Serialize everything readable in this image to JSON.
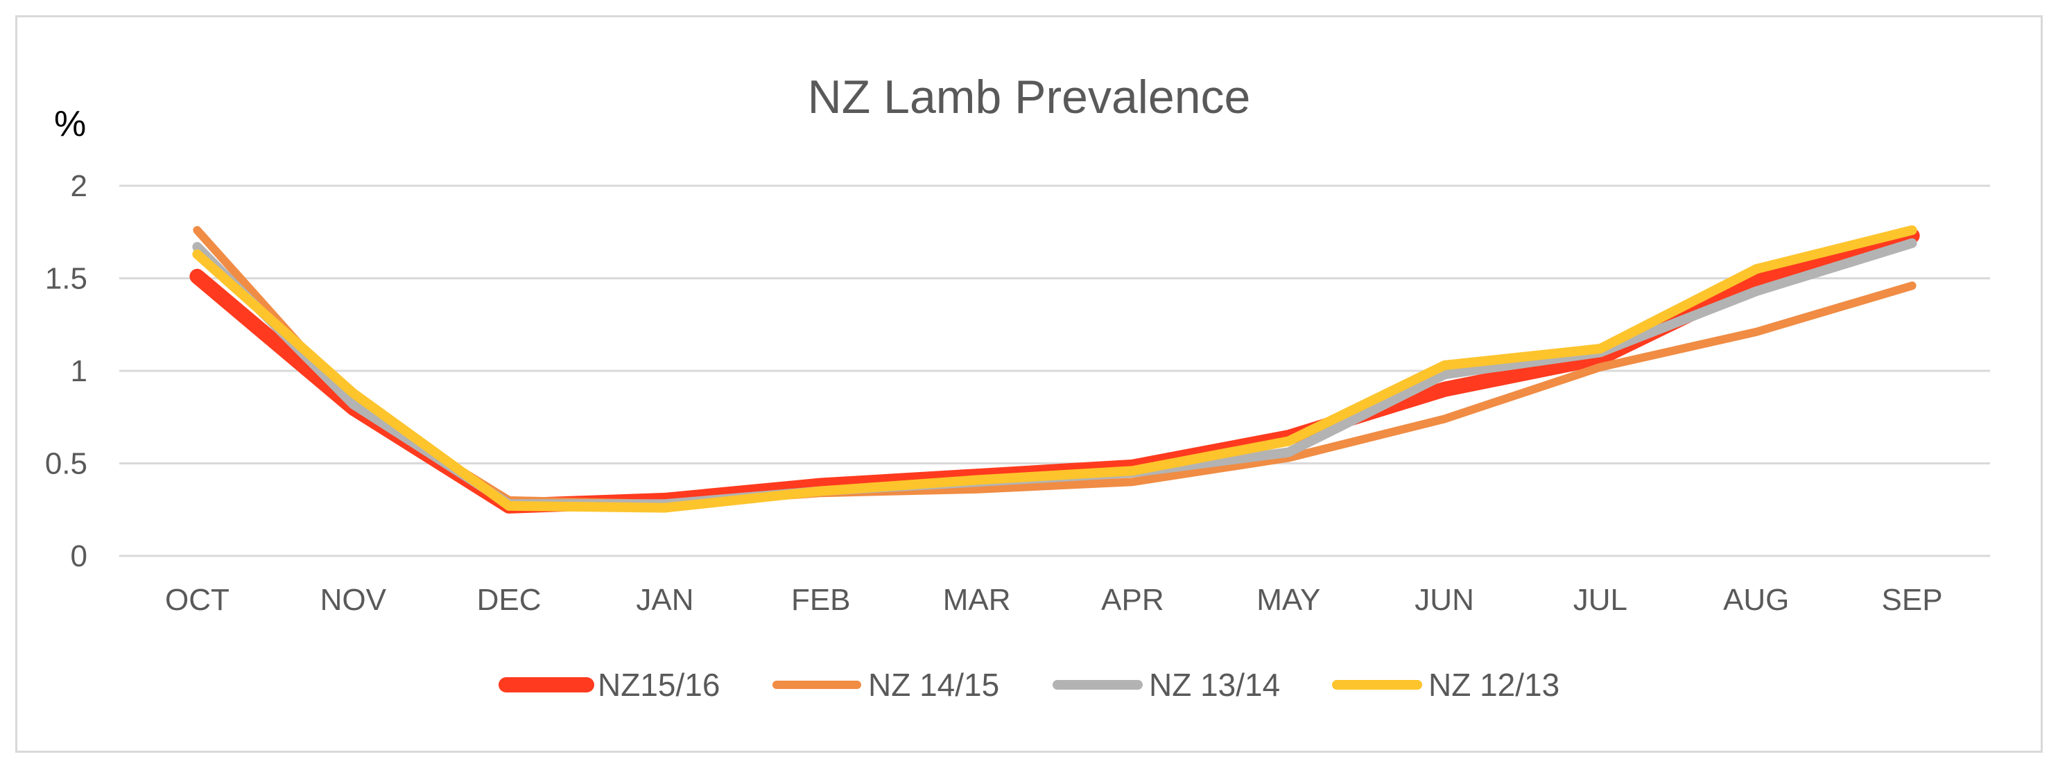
{
  "chart_data": {
    "type": "line",
    "title": "NZ Lamb Prevalence",
    "ylabel": "%",
    "xlabel": "",
    "categories": [
      "OCT",
      "NOV",
      "DEC",
      "JAN",
      "FEB",
      "MAR",
      "APR",
      "MAY",
      "JUN",
      "JUL",
      "AUG",
      "SEP"
    ],
    "ylim": [
      0,
      2
    ],
    "yticks": [
      "0",
      "0.5",
      "1",
      "1.5",
      "2"
    ],
    "grid": true,
    "legend_position": "bottom",
    "series": [
      {
        "name": "NZ15/16",
        "color": "#ff3a1e",
        "values": [
          1.51,
          0.8,
          0.27,
          0.3,
          0.38,
          0.43,
          0.48,
          0.64,
          0.9,
          1.07,
          1.48,
          1.73
        ]
      },
      {
        "name": "NZ 14/15",
        "color": "#f08c44",
        "values": [
          1.76,
          0.82,
          0.3,
          0.28,
          0.34,
          0.36,
          0.4,
          0.53,
          0.74,
          1.02,
          1.21,
          1.46
        ]
      },
      {
        "name": "NZ 13/14",
        "color": "#b3b3b3",
        "values": [
          1.67,
          0.82,
          0.28,
          0.28,
          0.35,
          0.4,
          0.45,
          0.56,
          0.98,
          1.1,
          1.43,
          1.69
        ]
      },
      {
        "name": "NZ 12/13",
        "color": "#fdc42c",
        "values": [
          1.63,
          0.88,
          0.27,
          0.26,
          0.35,
          0.41,
          0.46,
          0.62,
          1.03,
          1.12,
          1.55,
          1.76
        ]
      }
    ]
  }
}
